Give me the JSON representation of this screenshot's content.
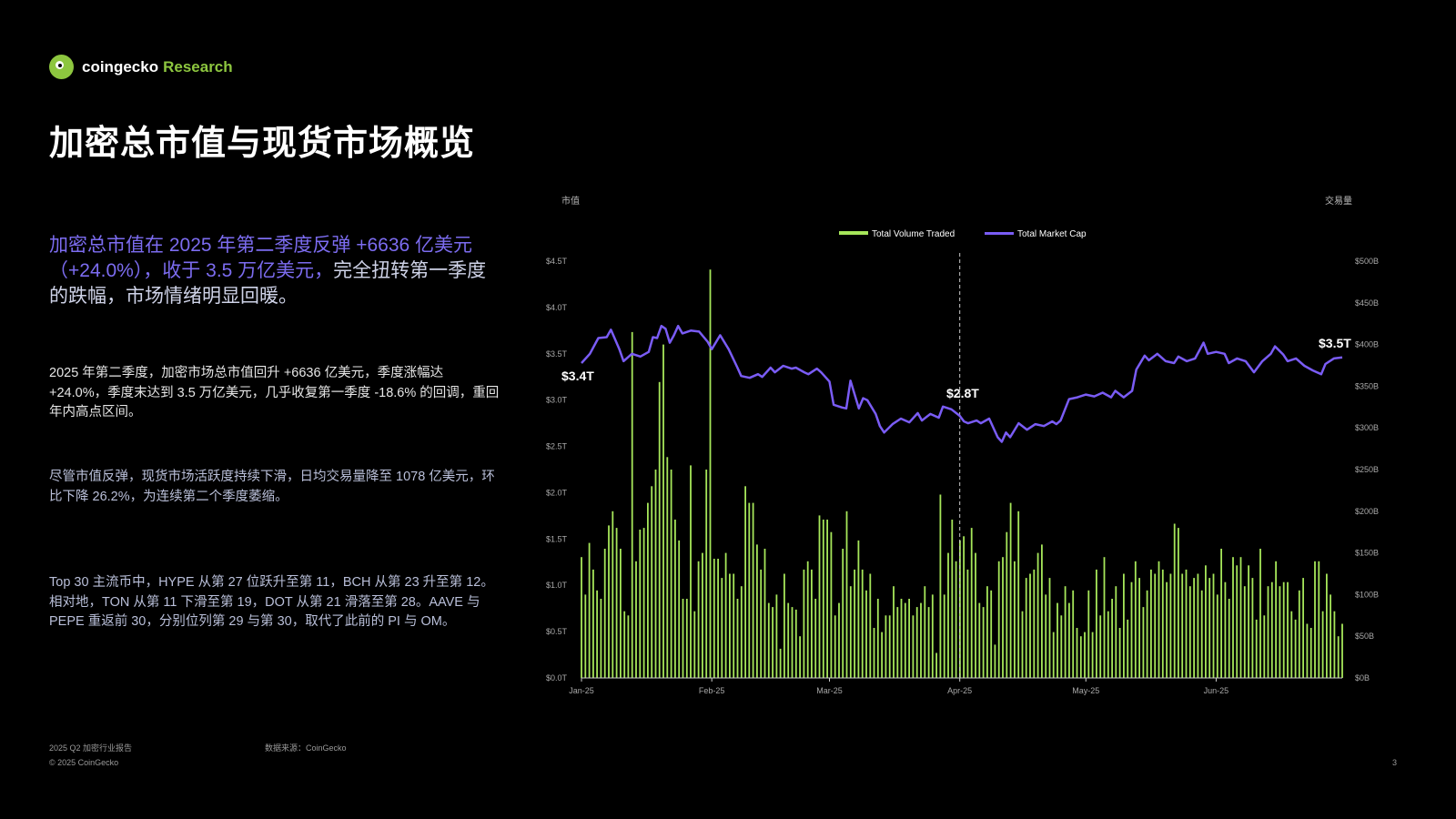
{
  "brand": {
    "name": "coingecko",
    "accent": "Research"
  },
  "title": "加密总市值与现货市场概览",
  "headline": {
    "part1": "加密总市值在 2025 年第二季度反弹 +6636 亿美元（+24.0%），收于 3.5 万亿美元，",
    "part2": "完全扭转第一季度的跌幅，市场情绪明显回暖。"
  },
  "paragraphs": [
    "2025 年第二季度，加密市场总市值回升 +6636 亿美元，季度涨幅达 +24.0%，季度末达到 3.5 万亿美元，几乎收复第一季度 -18.6% 的回调，重回年内高点区间。",
    "尽管市值反弹，现货市场活跃度持续下滑，日均交易量降至 1078 亿美元，环比下降 26.2%，为连续第二个季度萎缩。",
    "Top 30 主流币中，HYPE 从第 27 位跃升至第 11，BCH 从第 23 升至第 12。相对地，TON 从第 11 下滑至第 19，DOT 从第 21 滑落至第 28。AAVE 与 PEPE 重返前 30，分别位列第 29 与第 30，取代了此前的 PI 与 OM。"
  ],
  "footer": {
    "report": "2025 Q2 加密行业报告",
    "source": "数据来源：CoinGecko",
    "copyright": "© 2025 CoinGecko",
    "page": "3"
  },
  "colors": {
    "volume": "#a6e65a",
    "market_cap": "#7a5cf5",
    "background": "#000000"
  },
  "chart_data": {
    "type": "bar+line",
    "left_axis_title": "市值",
    "right_axis_title": "交易量",
    "left_ticks": [
      "$0.0T",
      "$0.5T",
      "$1.0T",
      "$1.5T",
      "$2.0T",
      "$2.5T",
      "$3.0T",
      "$3.5T",
      "$4.0T",
      "$4.5T"
    ],
    "right_ticks": [
      "$0B",
      "$50B",
      "$100B",
      "$150B",
      "$200B",
      "$250B",
      "$300B",
      "$350B",
      "$400B",
      "$450B",
      "$500B"
    ],
    "left_range": [
      0,
      4.5
    ],
    "right_range": [
      0,
      500
    ],
    "x_labels": [
      "Jan-25",
      "Feb-25",
      "Mar-25",
      "Apr-25",
      "May-25",
      "Jun-25"
    ],
    "x_range_days": [
      0,
      181
    ],
    "legend": [
      "Total Volume Traded",
      "Total Market Cap"
    ],
    "legend_position": "top-center",
    "series": [
      {
        "name": "Total Market Cap",
        "unit": "T",
        "points": [
          [
            0,
            3.4
          ],
          [
            2,
            3.5
          ],
          [
            4,
            3.67
          ],
          [
            6,
            3.68
          ],
          [
            7,
            3.76
          ],
          [
            9,
            3.55
          ],
          [
            10,
            3.42
          ],
          [
            12,
            3.5
          ],
          [
            14,
            3.47
          ],
          [
            16,
            3.52
          ],
          [
            17,
            3.68
          ],
          [
            18,
            3.67
          ],
          [
            19,
            3.8
          ],
          [
            20,
            3.77
          ],
          [
            21,
            3.62
          ],
          [
            22,
            3.7
          ],
          [
            23,
            3.8
          ],
          [
            24,
            3.72
          ],
          [
            26,
            3.75
          ],
          [
            28,
            3.74
          ],
          [
            30,
            3.63
          ],
          [
            31,
            3.55
          ],
          [
            33,
            3.7
          ],
          [
            35,
            3.55
          ],
          [
            37,
            3.36
          ],
          [
            38,
            3.26
          ],
          [
            40,
            3.24
          ],
          [
            42,
            3.28
          ],
          [
            43,
            3.25
          ],
          [
            45,
            3.35
          ],
          [
            46,
            3.3
          ],
          [
            48,
            3.37
          ],
          [
            50,
            3.34
          ],
          [
            51,
            3.35
          ],
          [
            53,
            3.3
          ],
          [
            54,
            3.28
          ],
          [
            56,
            3.34
          ],
          [
            57,
            3.3
          ],
          [
            59,
            3.2
          ],
          [
            60,
            2.95
          ],
          [
            62,
            2.92
          ],
          [
            63,
            2.91
          ],
          [
            64,
            3.21
          ],
          [
            66,
            2.91
          ],
          [
            67,
            3.02
          ],
          [
            68,
            3.0
          ],
          [
            70,
            2.85
          ],
          [
            71,
            2.72
          ],
          [
            72,
            2.65
          ],
          [
            74,
            2.74
          ],
          [
            76,
            2.8
          ],
          [
            78,
            2.76
          ],
          [
            80,
            2.86
          ],
          [
            81,
            2.78
          ],
          [
            83,
            2.85
          ],
          [
            85,
            2.81
          ],
          [
            86,
            2.93
          ],
          [
            88,
            2.9
          ],
          [
            90,
            2.83
          ],
          [
            91,
            2.77
          ],
          [
            92,
            2.75
          ],
          [
            94,
            2.78
          ],
          [
            95,
            2.75
          ],
          [
            97,
            2.8
          ],
          [
            99,
            2.6
          ],
          [
            100,
            2.55
          ],
          [
            101,
            2.65
          ],
          [
            102,
            2.6
          ],
          [
            104,
            2.75
          ],
          [
            106,
            2.68
          ],
          [
            108,
            2.74
          ],
          [
            110,
            2.72
          ],
          [
            112,
            2.77
          ],
          [
            113,
            2.74
          ],
          [
            114,
            2.78
          ],
          [
            116,
            3.01
          ],
          [
            118,
            3.03
          ],
          [
            120,
            3.06
          ],
          [
            122,
            3.04
          ],
          [
            124,
            3.08
          ],
          [
            126,
            3.03
          ],
          [
            127,
            3.1
          ],
          [
            129,
            3.03
          ],
          [
            131,
            3.1
          ],
          [
            132,
            3.33
          ],
          [
            134,
            3.48
          ],
          [
            135,
            3.43
          ],
          [
            137,
            3.5
          ],
          [
            139,
            3.42
          ],
          [
            141,
            3.4
          ],
          [
            142,
            3.47
          ],
          [
            144,
            3.42
          ],
          [
            146,
            3.45
          ],
          [
            148,
            3.62
          ],
          [
            149,
            3.5
          ],
          [
            151,
            3.52
          ],
          [
            153,
            3.5
          ],
          [
            154,
            3.4
          ],
          [
            156,
            3.45
          ],
          [
            158,
            3.42
          ],
          [
            160,
            3.3
          ],
          [
            162,
            3.42
          ],
          [
            164,
            3.5
          ],
          [
            165,
            3.58
          ],
          [
            167,
            3.49
          ],
          [
            168,
            3.42
          ],
          [
            170,
            3.45
          ],
          [
            172,
            3.37
          ],
          [
            174,
            3.32
          ],
          [
            176,
            3.28
          ],
          [
            177,
            3.39
          ],
          [
            179,
            3.45
          ],
          [
            181,
            3.46
          ]
        ]
      },
      {
        "name": "Total Volume Traded",
        "unit": "B",
        "values": [
          145,
          100,
          162,
          130,
          105,
          95,
          155,
          183,
          200,
          180,
          155,
          80,
          75,
          415,
          140,
          178,
          180,
          210,
          230,
          250,
          355,
          400,
          265,
          250,
          190,
          165,
          95,
          95,
          255,
          80,
          140,
          150,
          250,
          490,
          143,
          143,
          120,
          150,
          125,
          125,
          95,
          110,
          230,
          210,
          210,
          160,
          130,
          155,
          90,
          85,
          100,
          35,
          125,
          90,
          85,
          82,
          50,
          130,
          140,
          130,
          95,
          195,
          190,
          190,
          175,
          75,
          90,
          155,
          200,
          110,
          130,
          165,
          130,
          105,
          125,
          60,
          95,
          55,
          75,
          75,
          110,
          85,
          95,
          90,
          95,
          75,
          85,
          90,
          110,
          85,
          100,
          30,
          220,
          100,
          150,
          190,
          140,
          165,
          170,
          130,
          180,
          150,
          90,
          85,
          110,
          105,
          40,
          140,
          145,
          175,
          210,
          140,
          200,
          80,
          120,
          125,
          130,
          150,
          160,
          100,
          120,
          55,
          90,
          75,
          110,
          90,
          105,
          60,
          50,
          55,
          105,
          55,
          130,
          75,
          145,
          80,
          95,
          110,
          60,
          125,
          70,
          115,
          140,
          120,
          85,
          105,
          130,
          125,
          140,
          130,
          115,
          125,
          185,
          180,
          125,
          130,
          110,
          120,
          125,
          105,
          135,
          120,
          125,
          100,
          155,
          115,
          95,
          145,
          135,
          145,
          110,
          135,
          120,
          70,
          155,
          75,
          110,
          115,
          140,
          110,
          115,
          115,
          80,
          70,
          105,
          120,
          65,
          60,
          140,
          140,
          80,
          125,
          100,
          80,
          50,
          65
        ]
      }
    ],
    "annotations": [
      "$3.4T",
      "$2.8T",
      "$3.5T"
    ]
  }
}
